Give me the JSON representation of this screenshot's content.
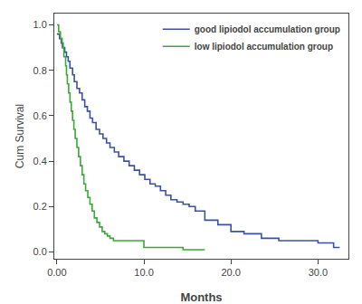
{
  "chart_data": {
    "type": "line",
    "xlabel": "Months",
    "ylabel": "Cum Survival",
    "xlim": [
      -0.3,
      33.5
    ],
    "ylim": [
      -0.03,
      1.05
    ],
    "xticks": [
      {
        "value": 0.0,
        "label": "0.00"
      },
      {
        "value": 10.0,
        "label": "10.0"
      },
      {
        "value": 20.0,
        "label": "20.0"
      },
      {
        "value": 30.0,
        "label": "30.0"
      }
    ],
    "yticks": [
      {
        "value": 0.0,
        "label": "0.0"
      },
      0.2,
      0.4,
      0.6,
      0.8,
      {
        "value": 1.0,
        "label": "1.0"
      }
    ],
    "grid": false,
    "legend": "upper right",
    "series": [
      {
        "name": "good lipiodol accumulation group",
        "color": "#3a52a4",
        "x": [
          0.0,
          0.3,
          0.3,
          0.5,
          0.5,
          0.7,
          0.7,
          0.9,
          0.9,
          1.1,
          1.1,
          1.3,
          1.3,
          1.5,
          1.5,
          1.8,
          1.8,
          2.0,
          2.0,
          2.3,
          2.3,
          2.6,
          2.6,
          2.9,
          2.9,
          3.2,
          3.2,
          3.5,
          3.5,
          3.8,
          3.8,
          4.1,
          4.1,
          4.5,
          4.5,
          4.9,
          4.9,
          5.3,
          5.3,
          5.7,
          5.7,
          6.1,
          6.1,
          6.6,
          6.6,
          7.1,
          7.1,
          7.7,
          7.7,
          8.3,
          8.3,
          8.9,
          8.9,
          9.5,
          9.5,
          10.1,
          10.1,
          10.7,
          10.7,
          11.3,
          11.3,
          11.9,
          11.9,
          12.5,
          12.5,
          13.1,
          13.1,
          13.8,
          13.8,
          14.5,
          14.5,
          15.2,
          15.2,
          15.9,
          15.9,
          17.0,
          17.0,
          18.5,
          18.5,
          20.0,
          20.0,
          21.5,
          21.5,
          23.5,
          23.5,
          25.5,
          25.5,
          27.5,
          27.5,
          30.0,
          30.0,
          31.8,
          31.8,
          32.5
        ],
        "values": [
          0.96,
          0.96,
          0.94,
          0.94,
          0.92,
          0.92,
          0.9,
          0.9,
          0.88,
          0.88,
          0.86,
          0.86,
          0.84,
          0.84,
          0.81,
          0.81,
          0.78,
          0.78,
          0.75,
          0.75,
          0.72,
          0.72,
          0.7,
          0.7,
          0.67,
          0.67,
          0.64,
          0.64,
          0.62,
          0.62,
          0.59,
          0.59,
          0.57,
          0.57,
          0.54,
          0.54,
          0.52,
          0.52,
          0.5,
          0.5,
          0.48,
          0.48,
          0.46,
          0.46,
          0.44,
          0.44,
          0.42,
          0.42,
          0.4,
          0.4,
          0.38,
          0.38,
          0.36,
          0.36,
          0.34,
          0.34,
          0.32,
          0.32,
          0.3,
          0.3,
          0.29,
          0.29,
          0.27,
          0.27,
          0.25,
          0.25,
          0.23,
          0.23,
          0.22,
          0.22,
          0.21,
          0.21,
          0.2,
          0.2,
          0.18,
          0.18,
          0.14,
          0.14,
          0.12,
          0.12,
          0.09,
          0.09,
          0.08,
          0.08,
          0.06,
          0.06,
          0.05,
          0.05,
          0.05,
          0.05,
          0.04,
          0.04,
          0.02,
          0.02
        ]
      },
      {
        "name": "low lipiodol accumulation group",
        "color": "#3aa83a",
        "x": [
          0.0,
          0.2,
          0.2,
          0.4,
          0.4,
          0.6,
          0.6,
          0.8,
          0.8,
          1.0,
          1.0,
          1.1,
          1.1,
          1.2,
          1.2,
          1.35,
          1.35,
          1.5,
          1.5,
          1.65,
          1.65,
          1.8,
          1.8,
          1.95,
          1.95,
          2.1,
          2.1,
          2.3,
          2.3,
          2.5,
          2.5,
          2.7,
          2.7,
          2.9,
          2.9,
          3.1,
          3.1,
          3.3,
          3.3,
          3.55,
          3.55,
          3.8,
          3.8,
          4.05,
          4.05,
          4.3,
          4.3,
          4.6,
          4.6,
          4.9,
          4.9,
          5.2,
          5.2,
          5.5,
          5.5,
          5.8,
          5.8,
          6.1,
          6.1,
          6.5,
          6.5,
          7.0,
          7.0,
          8.0,
          8.0,
          9.0,
          9.0,
          10.0,
          10.0,
          11.5,
          11.5,
          14.5,
          14.5,
          17.0
        ],
        "values": [
          1.0,
          1.0,
          0.97,
          0.97,
          0.94,
          0.94,
          0.9,
          0.9,
          0.86,
          0.86,
          0.82,
          0.82,
          0.78,
          0.78,
          0.74,
          0.74,
          0.7,
          0.7,
          0.66,
          0.66,
          0.62,
          0.62,
          0.58,
          0.58,
          0.54,
          0.54,
          0.5,
          0.5,
          0.46,
          0.46,
          0.42,
          0.42,
          0.38,
          0.38,
          0.34,
          0.34,
          0.3,
          0.3,
          0.27,
          0.27,
          0.24,
          0.24,
          0.21,
          0.21,
          0.18,
          0.18,
          0.15,
          0.15,
          0.13,
          0.13,
          0.11,
          0.11,
          0.09,
          0.09,
          0.08,
          0.08,
          0.07,
          0.07,
          0.06,
          0.06,
          0.05,
          0.05,
          0.05,
          0.05,
          0.05,
          0.05,
          0.05,
          0.05,
          0.02,
          0.02,
          0.02,
          0.02,
          0.01,
          0.01
        ]
      }
    ]
  }
}
